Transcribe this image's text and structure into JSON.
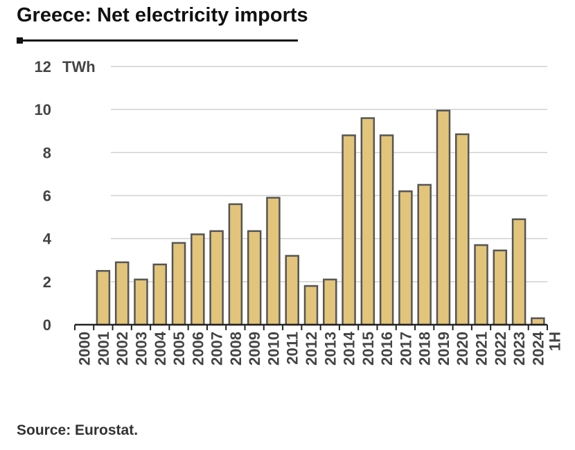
{
  "title": "Greece: Net electricity imports",
  "source": "Source: Eurostat.",
  "colors": {
    "bar_fill": "#e2c47a",
    "bar_stroke": "#555555",
    "grid": "#d0d0d0",
    "axis": "#222222"
  },
  "chart_data": {
    "type": "bar",
    "title": "Greece: Net electricity imports",
    "ylabel": "TWh",
    "xlabel": "",
    "ylim": [
      0,
      12
    ],
    "yticks": [
      0,
      2,
      4,
      6,
      8,
      10,
      12
    ],
    "grid": true,
    "categories": [
      "2000",
      "2001",
      "2002",
      "2003",
      "2004",
      "2005",
      "2006",
      "2007",
      "2008",
      "2009",
      "2010",
      "2011",
      "2012",
      "2013",
      "2014",
      "2015",
      "2016",
      "2017",
      "2018",
      "2019",
      "2020",
      "2021",
      "2022",
      "2023",
      "1H 2024"
    ],
    "values": [
      0,
      2.5,
      2.9,
      2.1,
      2.8,
      3.8,
      4.2,
      4.35,
      5.6,
      4.35,
      5.9,
      3.2,
      1.8,
      2.1,
      8.8,
      9.6,
      8.8,
      6.2,
      6.5,
      9.95,
      8.85,
      3.7,
      3.45,
      4.9,
      0.3
    ]
  }
}
